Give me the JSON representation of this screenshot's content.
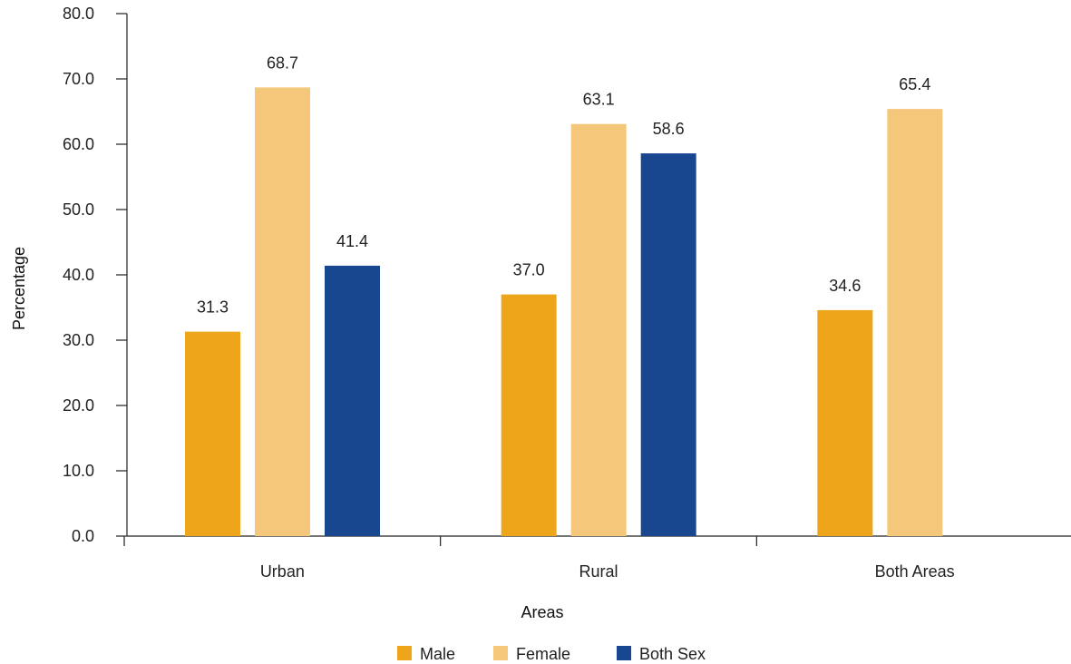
{
  "chart_data": {
    "type": "bar",
    "title": "",
    "xlabel": "Areas",
    "ylabel": "Percentage",
    "ylim": [
      0,
      80
    ],
    "yticks": [
      "0.0",
      "10.0",
      "20.0",
      "30.0",
      "40.0",
      "50.0",
      "60.0",
      "70.0",
      "80.0"
    ],
    "categories": [
      "Urban",
      "Rural",
      "Both Areas"
    ],
    "series": [
      {
        "name": "Male",
        "color": "#EDA519",
        "values": [
          31.3,
          37.0,
          34.6
        ],
        "labels": [
          "31.3",
          "37.0",
          "34.6"
        ]
      },
      {
        "name": "Female",
        "color": "#F5C77B",
        "values": [
          68.7,
          63.1,
          65.4
        ],
        "labels": [
          "68.7",
          "63.1",
          "65.4"
        ]
      },
      {
        "name": "Both Sex",
        "color": "#184790",
        "values": [
          41.4,
          58.6,
          null
        ],
        "labels": [
          "41.4",
          "58.6",
          ""
        ]
      }
    ],
    "grid": false,
    "legend_position": "bottom-center"
  }
}
